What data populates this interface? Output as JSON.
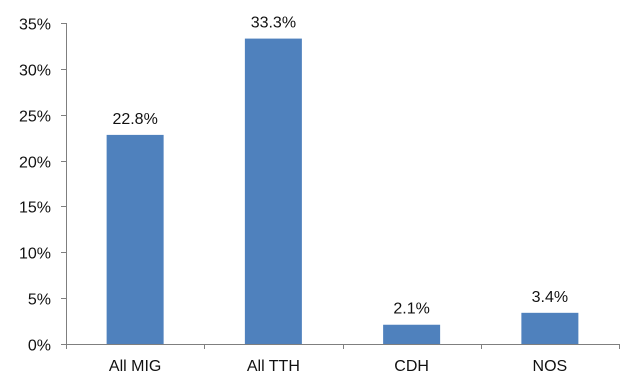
{
  "chart_data": {
    "type": "bar",
    "categories": [
      "All MIG",
      "All TTH",
      "CDH",
      "NOS"
    ],
    "values": [
      22.8,
      33.3,
      2.1,
      3.4
    ],
    "data_labels": [
      "22.8%",
      "33.3%",
      "2.1%",
      "3.4%"
    ],
    "title": "",
    "xlabel": "",
    "ylabel": "",
    "ylim": [
      0,
      35
    ],
    "yticks": [
      0,
      5,
      10,
      15,
      20,
      25,
      30,
      35
    ],
    "ytick_labels": [
      "0%",
      "5%",
      "10%",
      "15%",
      "20%",
      "25%",
      "30%",
      "35%"
    ],
    "grid": false,
    "legend": "none",
    "colors": {
      "bar": "#4f81bd",
      "axis": "#7f7f7f",
      "text": "#111111"
    }
  }
}
